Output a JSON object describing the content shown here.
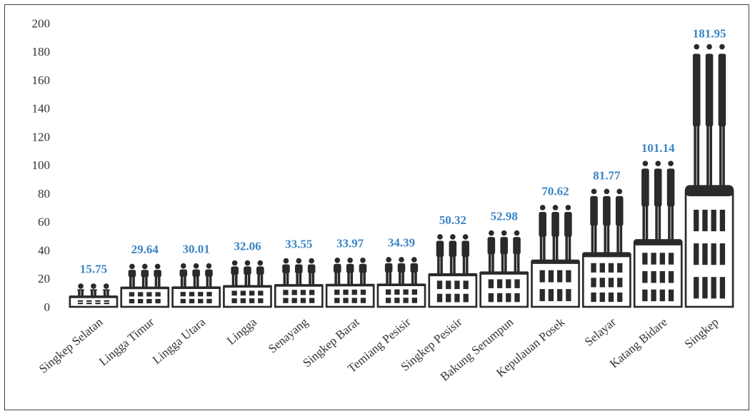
{
  "chart_data": {
    "type": "bar",
    "categories": [
      "Singkep Selatan",
      "Lingga Timur",
      "Lingga Utara",
      "Lingga",
      "Senayang",
      "Singkep Barat",
      "Temiang Pesisir",
      "Singkep Pesisir",
      "Bakung Serumpun",
      "Kepulauan Posek",
      "Selayar",
      "Katang Bidare",
      "Singkep"
    ],
    "values": [
      15.75,
      29.64,
      30.01,
      32.06,
      33.55,
      33.97,
      34.39,
      50.32,
      52.98,
      70.62,
      81.77,
      101.14,
      181.95
    ],
    "data_labels": [
      "15.75",
      "29.64",
      "30.01",
      "32.06",
      "33.55",
      "33.97",
      "34.39",
      "50.32",
      "52.98",
      "70.62",
      "81.77",
      "101.14",
      "181.95"
    ],
    "y_ticks": [
      "0",
      "20",
      "40",
      "60",
      "80",
      "100",
      "120",
      "140",
      "160",
      "180",
      "200"
    ],
    "ylim": [
      0,
      200
    ],
    "grid": false,
    "legend": "none",
    "title": "",
    "xlabel": "",
    "ylabel": "",
    "colors": {
      "pictogram": "#2a2a2a",
      "data_label": "#3a84c4",
      "tick_text": "#333333"
    }
  }
}
